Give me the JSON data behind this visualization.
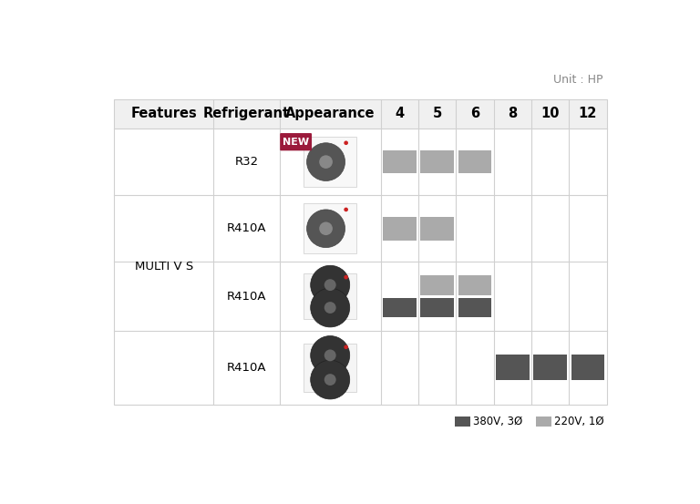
{
  "unit_label": "Unit : HP",
  "feature_label": "Features",
  "refrigerant_label": "Refrigerant",
  "appearance_label": "Appearance",
  "hp_columns": [
    4,
    5,
    6,
    8,
    10,
    12
  ],
  "feature_name": "MULTI V S",
  "rows": [
    {
      "refrigerant": "R32",
      "is_new": true,
      "bars_220v": [
        4,
        5,
        6
      ],
      "bars_380v": [],
      "fans": 1
    },
    {
      "refrigerant": "R410A",
      "is_new": false,
      "bars_220v": [
        4,
        5
      ],
      "bars_380v": [],
      "fans": 1
    },
    {
      "refrigerant": "R410A",
      "is_new": false,
      "bars_220v": [
        5,
        6
      ],
      "bars_380v": [
        4,
        5,
        6
      ],
      "fans": 2
    },
    {
      "refrigerant": "R410A",
      "is_new": false,
      "bars_220v": [],
      "bars_380v": [
        8,
        10,
        12
      ],
      "fans": 2
    }
  ],
  "color_380v": "#555555",
  "color_220v": "#aaaaaa",
  "color_header_bg": "#f0f0f0",
  "color_grid_line": "#d0d0d0",
  "color_new_badge": "#9b1a3b",
  "legend_380v": "380V, 3Ø",
  "legend_220v": "220V, 1Ø",
  "background_color": "#ffffff"
}
